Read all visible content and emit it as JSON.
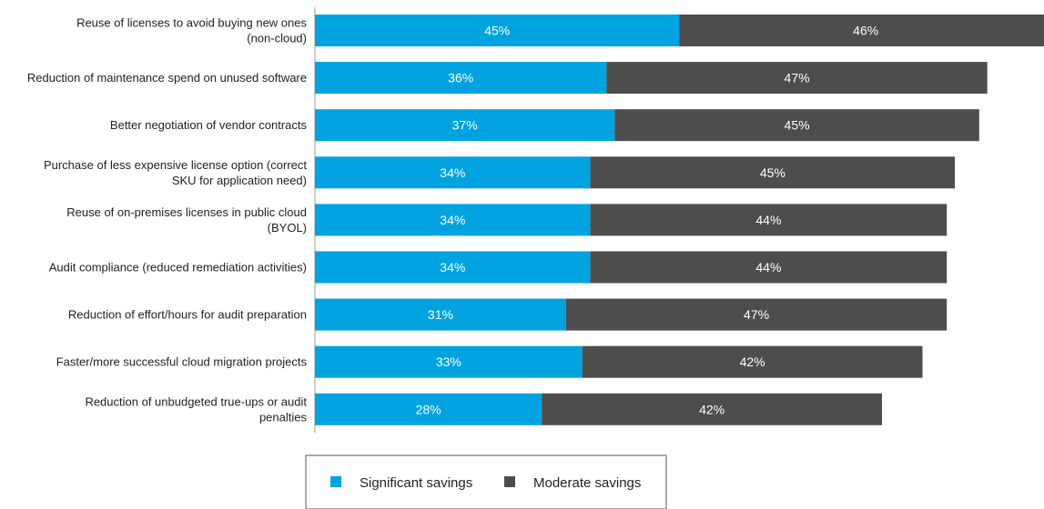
{
  "chart_data": {
    "type": "bar",
    "orientation": "horizontal",
    "stacked": true,
    "categories": [
      "Reuse of licenses to avoid buying new ones (non-cloud)",
      "Reduction of maintenance spend on unused software",
      "Better negotiation of vendor contracts",
      "Purchase of less expensive license option (correct SKU for application need)",
      "Reuse of on-premises licenses in public cloud (BYOL)",
      "Audit compliance (reduced remediation activities)",
      "Reduction of effort/hours for audit preparation",
      "Faster/more successful cloud migration projects",
      "Reduction of unbudgeted true-ups or audit penalties"
    ],
    "category_lines": [
      [
        "Reuse of licenses to avoid buying new ones",
        "(non-cloud)"
      ],
      [
        "Reduction of maintenance spend on unused software"
      ],
      [
        "Better negotiation of vendor contracts"
      ],
      [
        "Purchase of less expensive license option (correct",
        "SKU for application need)"
      ],
      [
        "Reuse of on-premises licenses in public cloud",
        "(BYOL)"
      ],
      [
        "Audit compliance (reduced remediation activities)"
      ],
      [
        "Reduction of effort/hours for audit preparation"
      ],
      [
        "Faster/more successful cloud migration projects"
      ],
      [
        "Reduction of unbudgeted true-ups or audit",
        "penalties"
      ]
    ],
    "series": [
      {
        "name": "Significant savings",
        "color": "#00a3e0",
        "values": [
          45,
          36,
          37,
          34,
          34,
          34,
          31,
          33,
          28
        ],
        "labels": [
          "45%",
          "36%",
          "37%",
          "34%",
          "34%",
          "34%",
          "31%",
          "33%",
          "28%"
        ]
      },
      {
        "name": "Moderate savings",
        "color": "#4d4d4d",
        "values": [
          46,
          47,
          45,
          45,
          44,
          44,
          47,
          42,
          42
        ],
        "labels": [
          "46%",
          "47%",
          "45%",
          "45%",
          "44%",
          "44%",
          "47%",
          "42%",
          "42%"
        ]
      }
    ],
    "xlim": [
      0,
      91
    ],
    "grid": false,
    "legend_position": "bottom"
  }
}
